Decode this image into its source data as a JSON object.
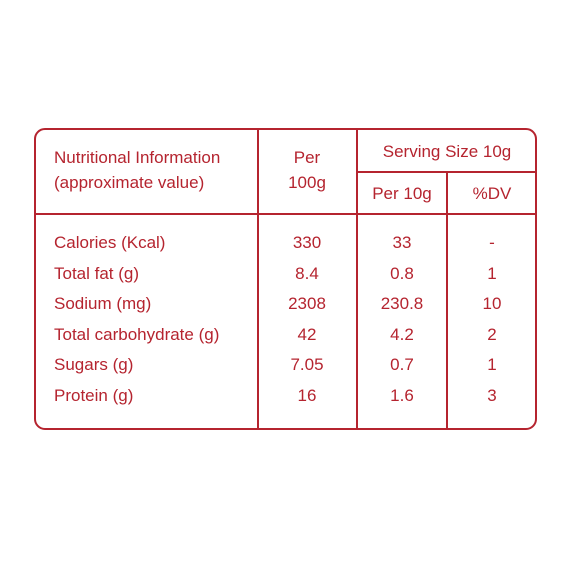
{
  "table": {
    "header": {
      "nutrition_label_line1": "Nutritional Information",
      "nutrition_label_line2": "(approximate value)",
      "per_label_line1": "Per",
      "per_label_line2": "100g",
      "serving_size_label": "Serving Size 10g",
      "per_serving_label": "Per 10g",
      "dv_label": "%DV"
    },
    "rows": [
      {
        "nutrient": "Calories (Kcal)",
        "per_100g": "330",
        "per_10g": "33",
        "dv": "-"
      },
      {
        "nutrient": "Total fat (g)",
        "per_100g": "8.4",
        "per_10g": "0.8",
        "dv": "1"
      },
      {
        "nutrient": "Sodium (mg)",
        "per_100g": "2308",
        "per_10g": "230.8",
        "dv": "10"
      },
      {
        "nutrient": "Total carbohydrate (g)",
        "per_100g": "42",
        "per_10g": "4.2",
        "dv": "2"
      },
      {
        "nutrient": "Sugars (g)",
        "per_100g": "7.05",
        "per_10g": "0.7",
        "dv": "1"
      },
      {
        "nutrient": "Protein (g)",
        "per_100g": "16",
        "per_10g": "1.6",
        "dv": "3"
      }
    ],
    "colors": {
      "ink": "#b5242f",
      "background": "#ffffff"
    }
  }
}
